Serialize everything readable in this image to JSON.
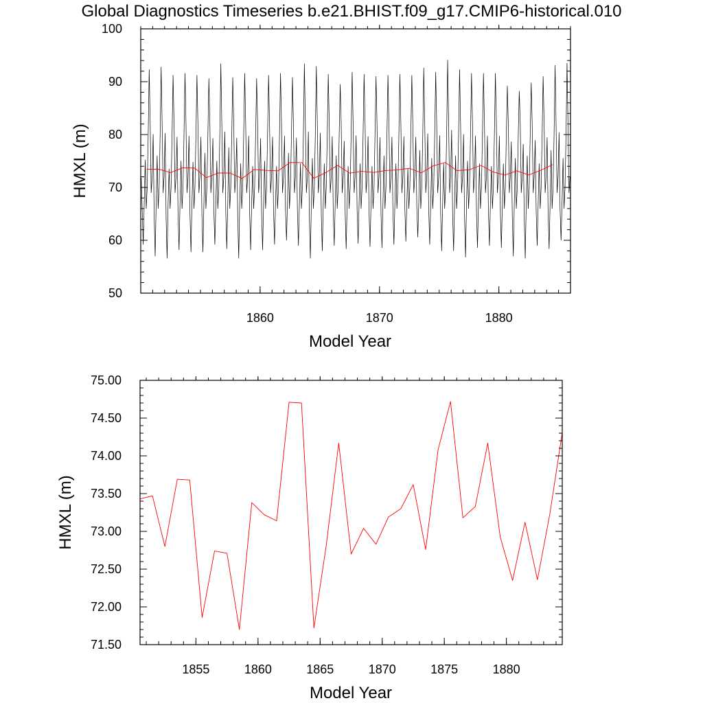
{
  "figure_title": "Global Diagnostics Timeseries b.e21.BHIST.f09_g17.CMIP6-historical.010",
  "colors": {
    "monthly": "#000000",
    "annual": "#ff0000"
  },
  "chart_data": [
    {
      "type": "line",
      "title": "Global Diagnostics Timeseries b.e21.BHIST.f09_g17.CMIP6-historical.010",
      "xlabel": "Model Year",
      "ylabel": "HMXL (m)",
      "xlim": [
        1850.0,
        1886.0
      ],
      "ylim": [
        50,
        100
      ],
      "xticks": [
        1860,
        1870,
        1880
      ],
      "xtick_labels": [
        "1860",
        "1870",
        "1880"
      ],
      "yticks": [
        50,
        60,
        70,
        80,
        90,
        100
      ],
      "ytick_labels": [
        "50",
        "60",
        "70",
        "80",
        "90",
        "100"
      ],
      "grid": false,
      "series": [
        {
          "color": "#000000",
          "kind": "monthly",
          "x_start": 1850.0417,
          "x_step": 0.0833333,
          "peaks": [
            92.3,
            92.8,
            91.2,
            91.6,
            91.2,
            90.6,
            93.4,
            90.8,
            91.6,
            90.6,
            91.2,
            91.6,
            90.8,
            93.4,
            92.9,
            91.4,
            89.5,
            91.8,
            91.4,
            91.0,
            91.2,
            91.4,
            91.2,
            92.6,
            91.8,
            94.1,
            92.3,
            91.6,
            91.6,
            91.6,
            89.2,
            88.2,
            89.8,
            91.0,
            93.1,
            93.5
          ],
          "troughs": [
            59.2,
            57.0,
            56.6,
            58.2,
            57.8,
            57.8,
            59.2,
            58.4,
            56.6,
            58.2,
            58.2,
            59.2,
            60.0,
            59.0,
            56.6,
            58.0,
            59.0,
            58.4,
            59.4,
            58.8,
            58.6,
            59.2,
            59.8,
            60.6,
            59.2,
            58.0,
            58.0,
            56.8,
            58.6,
            59.0,
            58.6,
            57.0,
            56.6,
            59.0,
            58.4,
            60.0
          ],
          "secondary": [
            75.2,
            76.0,
            73.5,
            75.0,
            74.8,
            76.5,
            75.0,
            77.5,
            74.5,
            74.0,
            75.0,
            74.0,
            76.5,
            74.5,
            75.5,
            74.5,
            76.0,
            74.0,
            74.5,
            74.0,
            76.0,
            74.5,
            73.5,
            77.0,
            75.5,
            74.5,
            76.0,
            75.0,
            74.5,
            74.0,
            74.5,
            75.5,
            76.0,
            74.5,
            77.0,
            75.5
          ]
        },
        {
          "color": "#ff0000",
          "kind": "annual",
          "x": [
            1850.5,
            1851.5,
            1852.5,
            1853.5,
            1854.5,
            1855.5,
            1856.5,
            1857.5,
            1858.5,
            1859.5,
            1860.5,
            1861.5,
            1862.5,
            1863.5,
            1864.5,
            1865.5,
            1866.5,
            1867.5,
            1868.5,
            1869.5,
            1870.5,
            1871.5,
            1872.5,
            1873.5,
            1874.5,
            1875.5,
            1876.5,
            1877.5,
            1878.5,
            1879.5,
            1880.5,
            1881.5,
            1882.5,
            1883.5,
            1884.5
          ],
          "y": [
            73.43,
            73.47,
            72.8,
            73.69,
            73.68,
            71.86,
            72.74,
            72.71,
            71.7,
            73.38,
            73.22,
            73.14,
            74.71,
            74.7,
            71.72,
            72.82,
            74.17,
            72.7,
            73.04,
            72.83,
            73.19,
            73.3,
            73.62,
            72.76,
            74.08,
            74.72,
            73.18,
            73.33,
            74.17,
            72.93,
            72.35,
            73.12,
            72.36,
            73.23,
            74.31
          ]
        }
      ]
    },
    {
      "type": "line",
      "title": "",
      "xlabel": "Model Year",
      "ylabel": "HMXL (m)",
      "xlim": [
        1850.5,
        1884.5
      ],
      "ylim": [
        71.5,
        75.0
      ],
      "xticks": [
        1855,
        1860,
        1865,
        1870,
        1875,
        1880
      ],
      "xtick_labels": [
        "1855",
        "1860",
        "1865",
        "1870",
        "1875",
        "1880"
      ],
      "yticks": [
        71.5,
        72.0,
        72.5,
        73.0,
        73.5,
        74.0,
        74.5,
        75.0
      ],
      "ytick_labels": [
        "71.50",
        "72.00",
        "72.50",
        "73.00",
        "73.50",
        "74.00",
        "74.50",
        "75.00"
      ],
      "grid": false,
      "series": [
        {
          "color": "#ff0000",
          "kind": "annual",
          "x": [
            1850.5,
            1851.5,
            1852.5,
            1853.5,
            1854.5,
            1855.5,
            1856.5,
            1857.5,
            1858.5,
            1859.5,
            1860.5,
            1861.5,
            1862.5,
            1863.5,
            1864.5,
            1865.5,
            1866.5,
            1867.5,
            1868.5,
            1869.5,
            1870.5,
            1871.5,
            1872.5,
            1873.5,
            1874.5,
            1875.5,
            1876.5,
            1877.5,
            1878.5,
            1879.5,
            1880.5,
            1881.5,
            1882.5,
            1883.5,
            1884.5
          ],
          "y": [
            73.43,
            73.47,
            72.8,
            73.69,
            73.68,
            71.86,
            72.74,
            72.71,
            71.7,
            73.38,
            73.22,
            73.14,
            74.71,
            74.7,
            71.72,
            72.82,
            74.17,
            72.7,
            73.04,
            72.83,
            73.19,
            73.3,
            73.62,
            72.76,
            74.08,
            74.72,
            73.18,
            73.33,
            74.17,
            72.93,
            72.35,
            73.12,
            72.36,
            73.23,
            74.31
          ]
        }
      ]
    }
  ]
}
